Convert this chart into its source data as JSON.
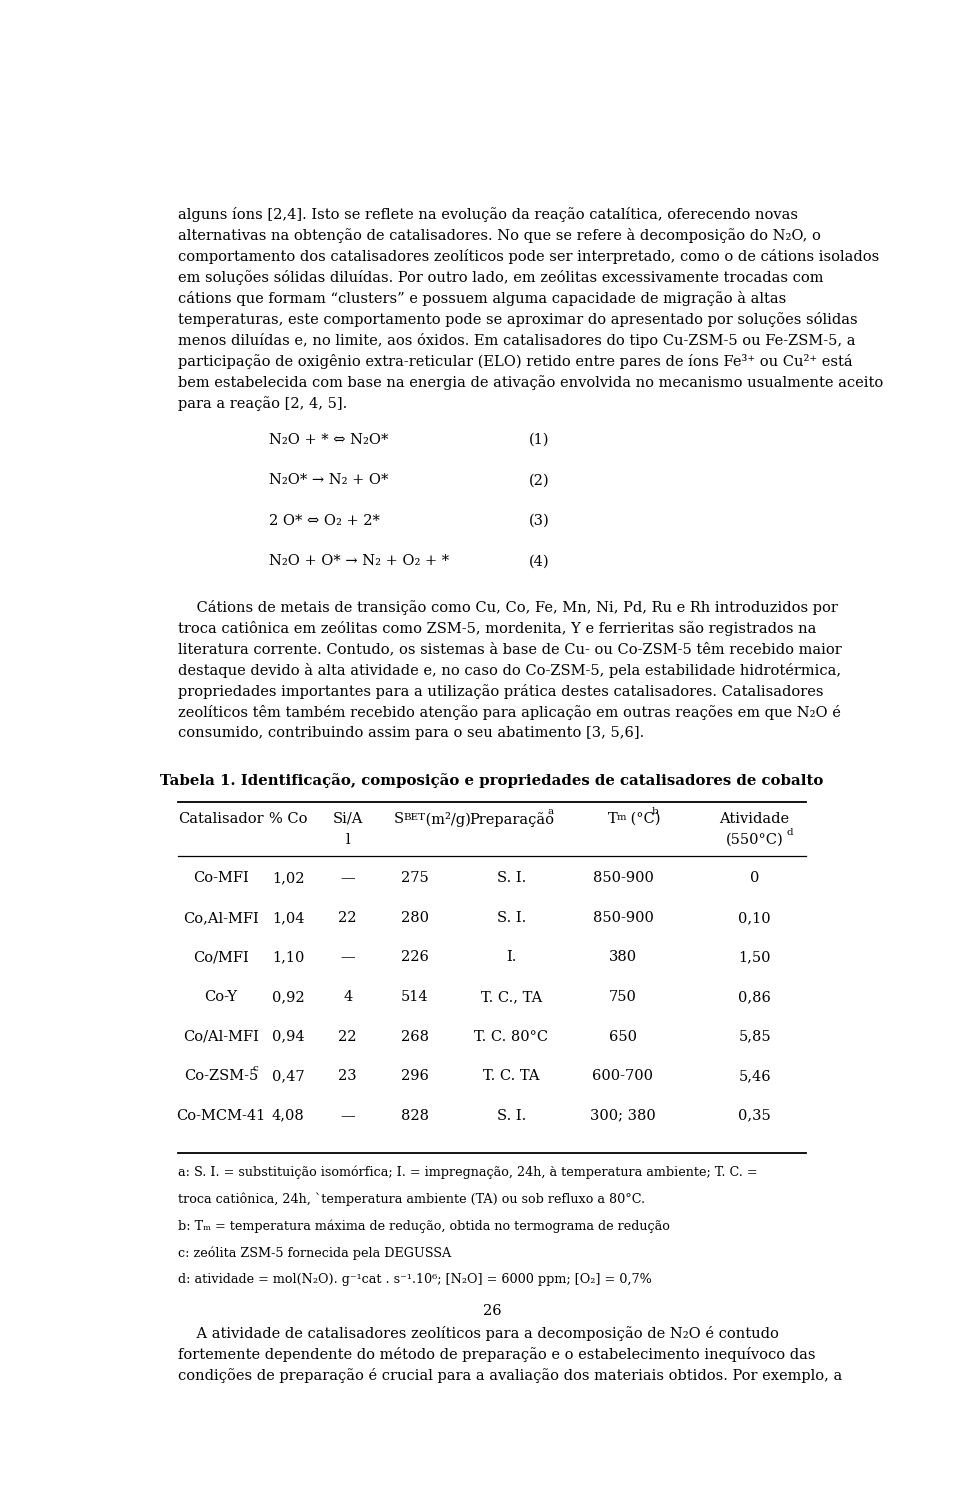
{
  "bg_color": "#ffffff",
  "text_color": "#000000",
  "page_width": 9.6,
  "page_height": 15.02,
  "para1_lines": [
    "alguns íons [2,4]. Isto se reflete na evolução da reação catalítica, oferecendo novas",
    "alternativas na obtenção de catalisadores. No que se refere à decomposição do N₂O, o",
    "comportamento dos catalisadores zeolíticos pode ser interpretado, como o de cátions isolados",
    "em soluções sólidas diluídas. Por outro lado, em zeólitas excessivamente trocadas com",
    "cátions que formam “clusters” e possuem alguma capacidade de migração à altas",
    "temperaturas, este comportamento pode se aproximar do apresentado por soluções sólidas",
    "menos diluídas e, no limite, aos óxidos. Em catalisadores do tipo Cu-ZSM-5 ou Fe-ZSM-5, a",
    "participação de oxigênio extra-reticular (ELO) retido entre pares de íons Fe³⁺ ou Cu²⁺ está",
    "bem estabelecida com base na energia de ativação envolvida no mecanismo usualmente aceito",
    "para a reação [2, 4, 5]."
  ],
  "equations": [
    [
      "N₂O + * ⇔ N₂O*",
      "(1)"
    ],
    [
      "N₂O* → N₂ + O*",
      "(2)"
    ],
    [
      "2 O* ⇔ O₂ + 2*",
      "(3)"
    ],
    [
      "N₂O + O* → N₂ + O₂ + *",
      "(4)"
    ]
  ],
  "para2_lines": [
    "    Cátions de metais de transição como Cu, Co, Fe, Mn, Ni, Pd, Ru e Rh introduzidos por",
    "troca catiônica em zeólitas como ZSM-5, mordenita, Y e ferrieritas são registrados na",
    "literatura corrente. Contudo, os sistemas à base de Cu- ou Co-ZSM-5 têm recebido maior",
    "destaque devido à alta atividade e, no caso do Co-ZSM-5, pela estabilidade hidrotérmica,",
    "propriedades importantes para a utilização prática destes catalisadores. Catalisadores",
    "zeolíticos têm também recebido atenção para aplicação em outras reações em que N₂O é",
    "consumido, contribuindo assim para o seu abatimento [3, 5,6]."
  ],
  "table_title": "Tabela 1. Identificação, composição e propriedades de catalisadores de cobalto",
  "table_rows": [
    [
      "Co-MFI",
      "1,02",
      "—",
      "275",
      "S. I.",
      "850-900",
      "0"
    ],
    [
      "Co,Al-MFI",
      "1,04",
      "22",
      "280",
      "S. I.",
      "850-900",
      "0,10"
    ],
    [
      "Co/MFI",
      "1,10",
      "—",
      "226",
      "I.",
      "380",
      "1,50"
    ],
    [
      "Co-Y",
      "0,92",
      "4",
      "514",
      "T. C., TA",
      "750",
      "0,86"
    ],
    [
      "Co/Al-MFI",
      "0,94",
      "22",
      "268",
      "T. C. 80°C",
      "650",
      "5,85"
    ],
    [
      "Co-ZSM-5c",
      "0,47",
      "23",
      "296",
      "T. C. TA",
      "600-700",
      "5,46"
    ],
    [
      "Co-MCM-41",
      "4,08",
      "—",
      "828",
      "S. I.",
      "300; 380",
      "0,35"
    ]
  ],
  "fn_lines": [
    [
      "a: S. I. = substituição isomórfica; I. = impregnação, 24h, à temperatura ambiente; T. C. = troca catiônica, 24h, `temperatura ambiente (TA) ou sob refluxo a 80°C."
    ],
    [
      "b: Tₘ = temperatura máxima de redução, obtida no termograma de redução"
    ],
    [
      "c: zeólita ZSM-5 fornecida pela DEGUSSA"
    ],
    [
      "d: atividade = mol(N₂O). g⁻¹cat . s⁻¹.10⁶; [N₂O] = 6000 ppm; [O₂] = 0,7%"
    ]
  ],
  "para3_lines": [
    "    A atividade de catalisadores zeolíticos para a decomposição de N₂O é contudo",
    "fortemente dependente do método de preparação e o estabelecimento inequívoco das",
    "condições de preparação é crucial para a avaliação dos materiais obtidos. Por exemplo, a"
  ],
  "page_number": "26"
}
